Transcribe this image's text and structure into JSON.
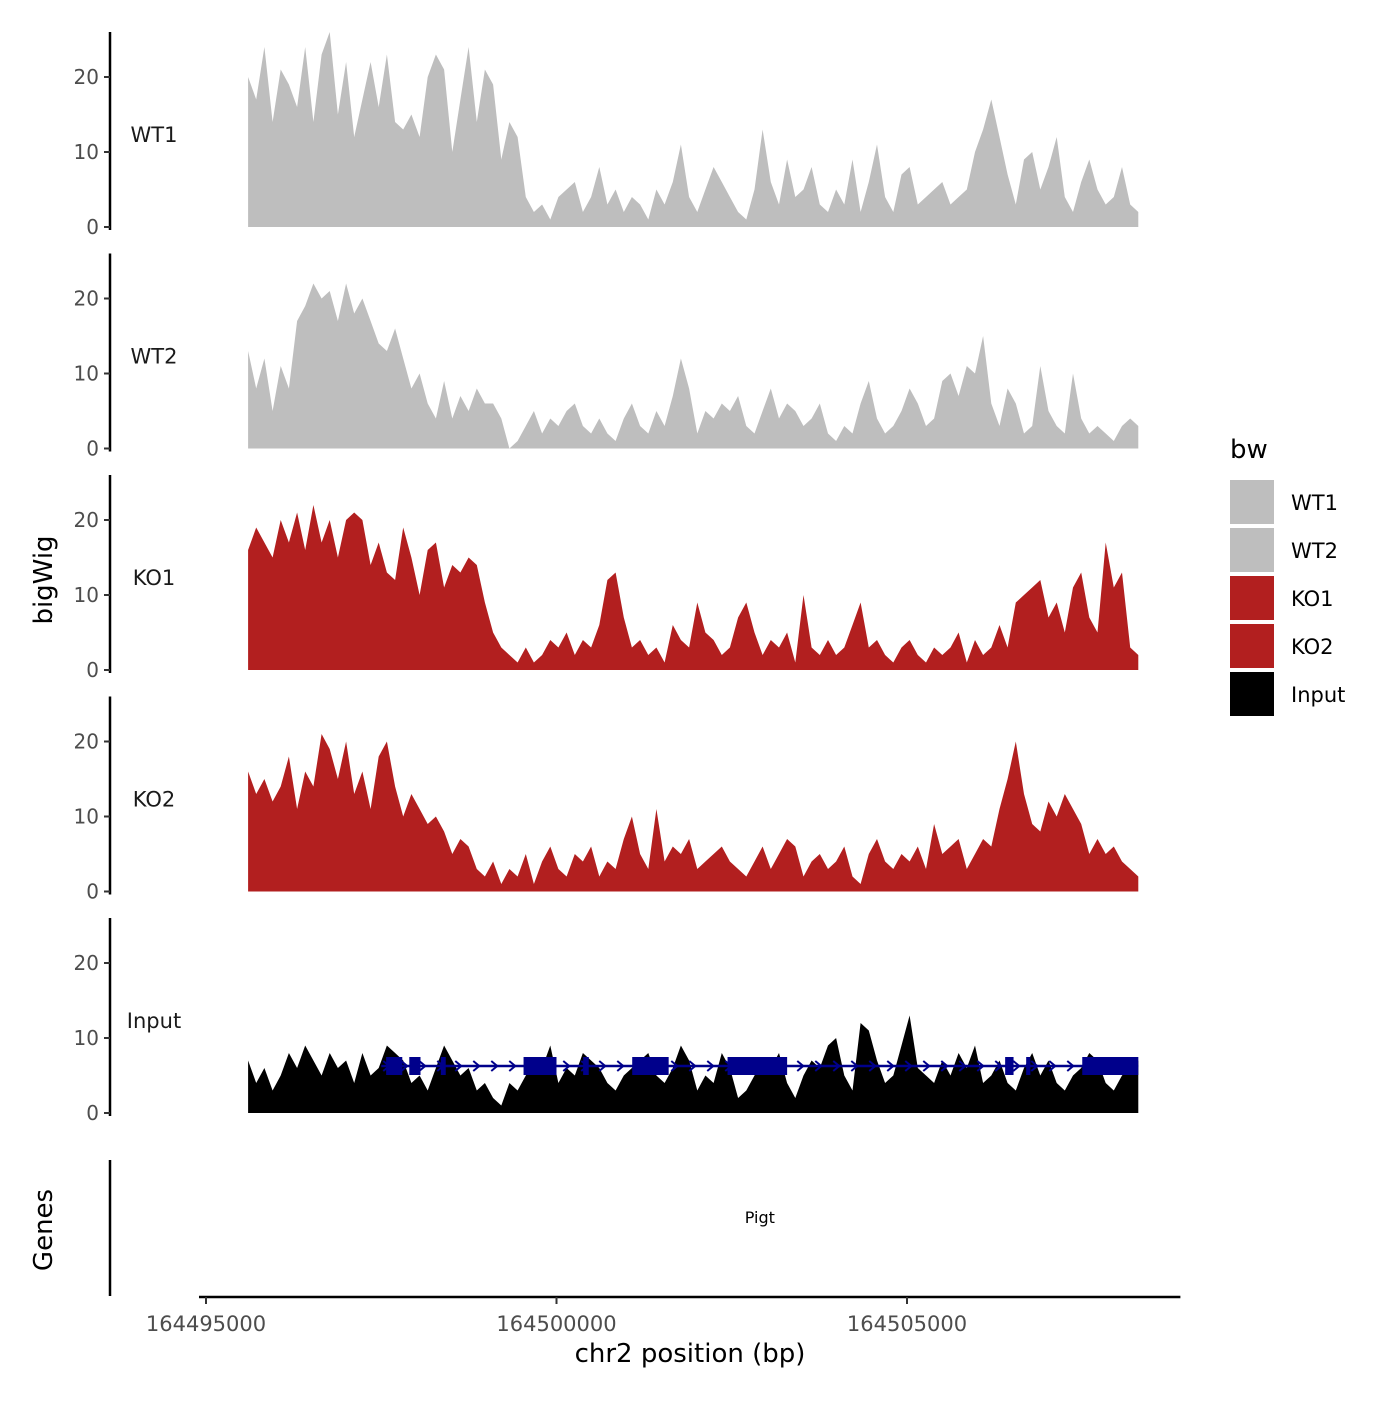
{
  "chart_data": {
    "type": "area",
    "ylabel": "bigWig",
    "xlabel": "chr2 position (bp)",
    "genes_label": "Genes",
    "y_ticks": [
      0,
      10,
      20
    ],
    "ylim": [
      0,
      26
    ],
    "xlim": [
      164494900,
      164508900
    ],
    "x_ticks": [
      164495000,
      164500000,
      164505000
    ],
    "x_tick_labels": [
      "164495000",
      "164500000",
      "164505000"
    ],
    "legend": {
      "title": "bw",
      "position": "right",
      "entries": [
        {
          "label": "WT1",
          "color": "#bebebe"
        },
        {
          "label": "WT2",
          "color": "#bebebe"
        },
        {
          "label": "KO1",
          "color": "#b21f1f"
        },
        {
          "label": "KO2",
          "color": "#b21f1f"
        },
        {
          "label": "Input",
          "color": "#000000"
        }
      ]
    },
    "track_range": [
      164495600,
      164508300
    ],
    "series": [
      {
        "name": "WT1",
        "color": "#bebebe",
        "values": [
          20,
          17,
          24,
          14,
          21,
          19,
          16,
          24,
          14,
          23,
          26,
          15,
          22,
          12,
          17,
          22,
          16,
          23,
          14,
          13,
          15,
          12,
          20,
          23,
          21,
          10,
          17,
          24,
          14,
          21,
          19,
          9,
          14,
          12,
          4,
          2,
          3,
          1,
          4,
          5,
          6,
          2,
          4,
          8,
          3,
          5,
          2,
          4,
          3,
          1,
          5,
          3,
          6,
          11,
          4,
          2,
          5,
          8,
          6,
          4,
          2,
          1,
          5,
          13,
          6,
          3,
          9,
          4,
          5,
          8,
          3,
          2,
          5,
          3,
          9,
          2,
          6,
          11,
          4,
          2,
          7,
          8,
          3,
          4,
          5,
          6,
          3,
          4,
          5,
          10,
          13,
          17,
          12,
          7,
          3,
          9,
          10,
          5,
          8,
          12,
          4,
          2,
          6,
          9,
          5,
          3,
          4,
          8,
          3,
          2
        ]
      },
      {
        "name": "WT2",
        "color": "#bebebe",
        "values": [
          13,
          8,
          12,
          5,
          11,
          8,
          17,
          19,
          22,
          20,
          21,
          17,
          22,
          18,
          20,
          17,
          14,
          13,
          16,
          12,
          8,
          10,
          6,
          4,
          9,
          4,
          7,
          5,
          8,
          6,
          6,
          4,
          0,
          1,
          3,
          5,
          2,
          4,
          3,
          5,
          6,
          3,
          2,
          4,
          2,
          1,
          4,
          6,
          3,
          2,
          5,
          3,
          7,
          12,
          8,
          2,
          5,
          4,
          6,
          5,
          7,
          3,
          2,
          5,
          8,
          4,
          6,
          5,
          3,
          4,
          6,
          2,
          1,
          3,
          2,
          6,
          9,
          4,
          2,
          3,
          5,
          8,
          6,
          3,
          4,
          9,
          10,
          7,
          11,
          10,
          15,
          6,
          3,
          8,
          6,
          2,
          3,
          11,
          5,
          3,
          2,
          10,
          4,
          2,
          3,
          2,
          1,
          3,
          4,
          3
        ]
      },
      {
        "name": "KO1",
        "color": "#b21f1f",
        "values": [
          16,
          19,
          17,
          15,
          20,
          17,
          21,
          16,
          22,
          17,
          20,
          15,
          20,
          21,
          20,
          14,
          17,
          13,
          12,
          19,
          15,
          10,
          16,
          17,
          11,
          14,
          13,
          15,
          14,
          9,
          5,
          3,
          2,
          1,
          3,
          1,
          2,
          4,
          3,
          5,
          2,
          4,
          3,
          6,
          12,
          13,
          7,
          3,
          4,
          2,
          3,
          1,
          6,
          4,
          3,
          9,
          5,
          4,
          2,
          3,
          7,
          9,
          5,
          2,
          4,
          3,
          5,
          1,
          10,
          3,
          2,
          4,
          2,
          3,
          6,
          9,
          3,
          4,
          2,
          1,
          3,
          4,
          2,
          1,
          3,
          2,
          3,
          5,
          1,
          4,
          2,
          3,
          6,
          3,
          9,
          10,
          11,
          12,
          7,
          9,
          5,
          11,
          13,
          7,
          5,
          17,
          11,
          13,
          3,
          2
        ]
      },
      {
        "name": "KO2",
        "color": "#b21f1f",
        "values": [
          16,
          13,
          15,
          12,
          14,
          18,
          11,
          16,
          14,
          21,
          19,
          15,
          20,
          13,
          16,
          11,
          18,
          20,
          14,
          10,
          13,
          11,
          9,
          10,
          8,
          5,
          7,
          6,
          3,
          2,
          4,
          1,
          3,
          2,
          5,
          1,
          4,
          6,
          3,
          2,
          5,
          4,
          6,
          2,
          4,
          3,
          7,
          10,
          5,
          3,
          11,
          4,
          6,
          5,
          7,
          3,
          4,
          5,
          6,
          4,
          3,
          2,
          4,
          6,
          3,
          5,
          7,
          6,
          2,
          4,
          5,
          3,
          4,
          6,
          2,
          1,
          5,
          7,
          4,
          3,
          5,
          4,
          6,
          3,
          9,
          5,
          6,
          7,
          3,
          5,
          7,
          6,
          11,
          15,
          20,
          13,
          9,
          8,
          12,
          10,
          13,
          11,
          9,
          5,
          7,
          5,
          6,
          4,
          3,
          2
        ]
      },
      {
        "name": "Input",
        "color": "#000000",
        "values": [
          7,
          4,
          6,
          3,
          5,
          8,
          6,
          9,
          7,
          5,
          8,
          6,
          7,
          4,
          8,
          5,
          6,
          9,
          8,
          7,
          4,
          5,
          3,
          6,
          9,
          7,
          5,
          6,
          3,
          4,
          2,
          1,
          4,
          3,
          5,
          7,
          6,
          9,
          4,
          6,
          5,
          8,
          7,
          6,
          4,
          3,
          5,
          6,
          7,
          8,
          5,
          4,
          6,
          9,
          7,
          3,
          5,
          4,
          8,
          6,
          2,
          3,
          5,
          7,
          6,
          8,
          4,
          2,
          5,
          7,
          6,
          9,
          10,
          5,
          3,
          12,
          11,
          7,
          4,
          5,
          9,
          13,
          6,
          5,
          4,
          7,
          5,
          8,
          6,
          9,
          4,
          5,
          7,
          4,
          3,
          6,
          8,
          5,
          7,
          4,
          3,
          5,
          6,
          8,
          7,
          4,
          3,
          5,
          6,
          7
        ]
      }
    ],
    "genes": [
      {
        "name": "Pigt",
        "strand": "+",
        "start": 164497500,
        "end": 164508300,
        "exons": [
          [
            164497570,
            164497800
          ],
          [
            164497900,
            164498060
          ],
          [
            164498350,
            164498420
          ],
          [
            164499530,
            164500000
          ],
          [
            164500380,
            164500460
          ],
          [
            164501080,
            164501600
          ],
          [
            164502440,
            164503290
          ],
          [
            164506400,
            164506520
          ],
          [
            164506700,
            164506760
          ],
          [
            164507500,
            164508300
          ]
        ]
      }
    ]
  }
}
